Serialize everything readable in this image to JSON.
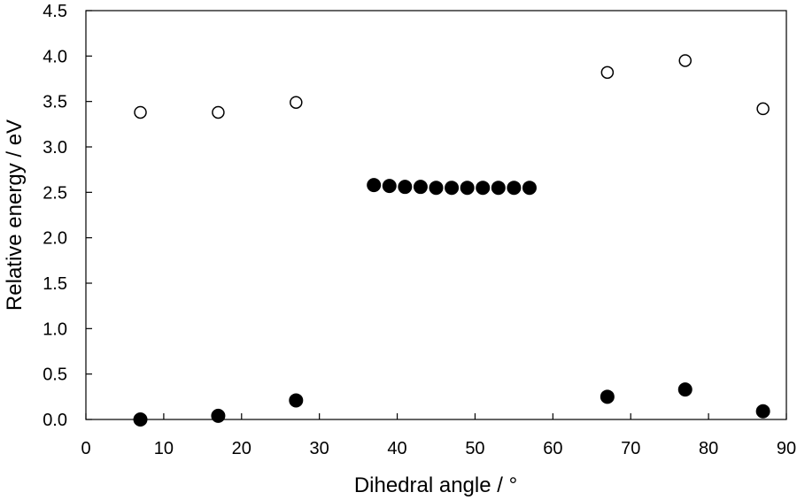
{
  "chart_data": {
    "type": "scatter",
    "xlabel": "Dihedral angle / °",
    "ylabel": "Relative energy / eV",
    "xlim": [
      0,
      90
    ],
    "ylim": [
      0,
      4.5
    ],
    "x_ticks": [
      "0",
      "10",
      "20",
      "30",
      "40",
      "50",
      "60",
      "70",
      "80",
      "90"
    ],
    "y_ticks": [
      "0.0",
      "0.5",
      "1.0",
      "1.5",
      "2.0",
      "2.5",
      "3.0",
      "3.5",
      "4.0",
      "4.5"
    ],
    "grid": false,
    "legend": "none",
    "series": [
      {
        "marker": "filled-circle",
        "color": "#000000",
        "points": [
          [
            7,
            0.0
          ],
          [
            17,
            0.04
          ],
          [
            27,
            0.21
          ],
          [
            37,
            2.58
          ],
          [
            39,
            2.57
          ],
          [
            41,
            2.56
          ],
          [
            43,
            2.56
          ],
          [
            45,
            2.55
          ],
          [
            47,
            2.55
          ],
          [
            49,
            2.55
          ],
          [
            51,
            2.55
          ],
          [
            53,
            2.55
          ],
          [
            55,
            2.55
          ],
          [
            57,
            2.55
          ],
          [
            67,
            0.25
          ],
          [
            77,
            0.33
          ],
          [
            87,
            0.09
          ]
        ]
      },
      {
        "marker": "open-circle",
        "color": "#000000",
        "points": [
          [
            7,
            3.38
          ],
          [
            17,
            3.38
          ],
          [
            27,
            3.49
          ],
          [
            67,
            3.82
          ],
          [
            77,
            3.95
          ],
          [
            87,
            3.42
          ]
        ]
      }
    ]
  }
}
